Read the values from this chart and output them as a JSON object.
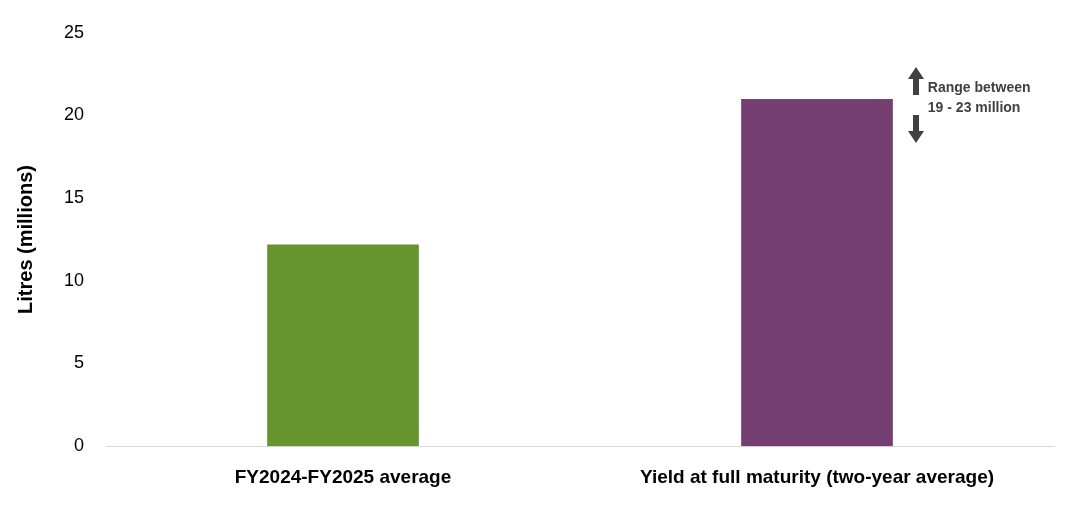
{
  "chart_data": {
    "type": "bar",
    "ylabel": "Litres (millions)",
    "categories": [
      "FY2024-FY2025 average",
      "Yield at full maturity (two-year average)"
    ],
    "values": [
      12.2,
      21
    ],
    "colors": [
      "#66952f",
      "#763f72"
    ],
    "ylim": [
      0,
      25
    ],
    "yticks": [
      0,
      5,
      10,
      15,
      20,
      25
    ],
    "grid": false,
    "legend": false,
    "annotations": [
      "Range between 19 - 23 million"
    ]
  }
}
